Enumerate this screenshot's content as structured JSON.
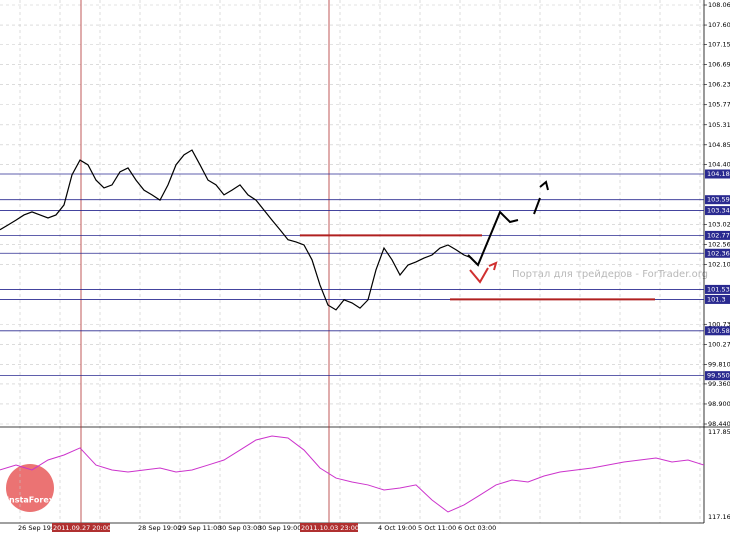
{
  "chart_data": {
    "type": "line",
    "watermark": "Портал для трейдеров - ForTrader.org",
    "logo": "InstaForex",
    "x_labels": [
      "26 Sep 19:00",
      "2011.09.27 20:00",
      "28 Sep 19:00",
      "29 Sep 11:00",
      "30 Sep 03:00",
      "30 Sep 19:00",
      "2011.10.03 23:00",
      "4 Oct 19:00",
      "5 Oct 11:00",
      "6 Oct 03:00"
    ],
    "ylim": [
      98.44,
      108.06
    ],
    "yticks": [
      {
        "value": 108.06,
        "label": "108.060"
      },
      {
        "value": 107.6,
        "label": "107.600"
      },
      {
        "value": 107.15,
        "label": "107.150"
      },
      {
        "value": 106.69,
        "label": "106.690"
      },
      {
        "value": 106.23,
        "label": "106.230"
      },
      {
        "value": 105.77,
        "label": "105.770"
      },
      {
        "value": 105.31,
        "label": "105.310"
      },
      {
        "value": 104.85,
        "label": "104.850"
      },
      {
        "value": 104.4,
        "label": "104.400"
      },
      {
        "value": 103.02,
        "label": "103.020"
      },
      {
        "value": 102.56,
        "label": "102.560"
      },
      {
        "value": 102.1,
        "label": "102.100"
      },
      {
        "value": 100.73,
        "label": "100.730"
      },
      {
        "value": 100.27,
        "label": "100.270"
      },
      {
        "value": 99.81,
        "label": "99.810"
      },
      {
        "value": 99.36,
        "label": "99.360"
      },
      {
        "value": 98.9,
        "label": "98.900"
      },
      {
        "value": 98.44,
        "label": "98.440"
      }
    ],
    "grid": true,
    "levels": [
      104.18,
      103.59,
      103.34,
      102.77,
      102.36,
      101.53,
      101.3,
      100.58,
      {
        "value": 99.55,
        "label": "99.550"
      }
    ],
    "level_color": "#2a2a90",
    "series": [
      {
        "color": "#000000",
        "values": [
          102.9,
          103.01,
          103.12,
          103.24,
          103.31,
          103.24,
          103.17,
          103.24,
          103.47,
          104.16,
          104.5,
          104.39,
          104.04,
          103.86,
          103.93,
          104.23,
          104.32,
          104.04,
          103.81,
          103.7,
          103.58,
          103.93,
          104.39,
          104.62,
          104.73,
          104.39,
          104.04,
          103.93,
          103.7,
          103.81,
          103.93,
          103.7,
          103.58,
          103.35,
          103.12,
          102.9,
          102.67,
          102.62,
          102.55,
          102.21,
          101.63,
          101.17,
          101.06,
          101.29,
          101.22,
          101.1,
          101.29,
          101.98,
          102.48,
          102.21,
          101.86,
          102.09,
          102.16,
          102.25,
          102.32,
          102.48,
          102.55,
          102.44,
          102.32,
          102.25
        ]
      }
    ],
    "indicator": {
      "color": "#cc33cc",
      "ylim": [
        117.162,
        117.854
      ],
      "yticks": [
        117.854,
        117.162
      ],
      "values": [
        117.545,
        117.585,
        117.545,
        117.626,
        117.667,
        117.724,
        117.585,
        117.545,
        117.528,
        117.545,
        117.561,
        117.528,
        117.545,
        117.585,
        117.626,
        117.707,
        117.789,
        117.821,
        117.805,
        117.707,
        117.561,
        117.479,
        117.447,
        117.423,
        117.382,
        117.398,
        117.423,
        117.3,
        117.203,
        117.26,
        117.341,
        117.423,
        117.463,
        117.447,
        117.496,
        117.528,
        117.545,
        117.561,
        117.585,
        117.61,
        117.626,
        117.642,
        117.61,
        117.626,
        117.585
      ]
    }
  }
}
